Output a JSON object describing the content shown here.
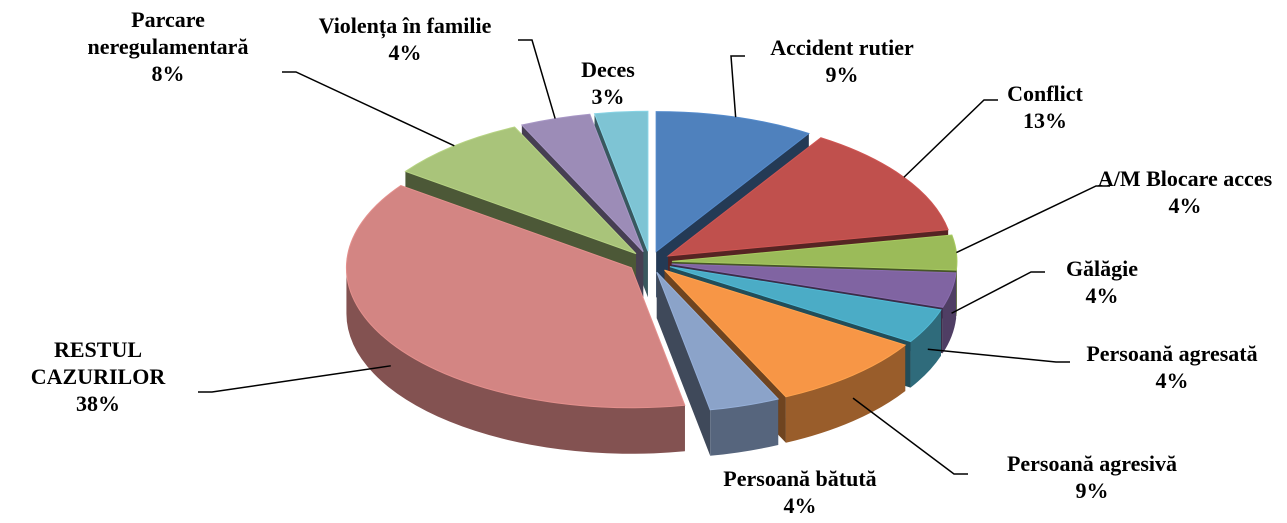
{
  "chart_data": {
    "type": "pie",
    "categories": [
      "Accident rutier",
      "Conflict",
      "A/M Blocare acces",
      "Gălăgie",
      "Persoană agresată",
      "Persoană agresivă",
      "Persoană bătută",
      "RESTUL CAZURILOR",
      "Parcare neregulamentară",
      "Violența în familie",
      "Deces"
    ],
    "values": [
      9,
      13,
      4,
      4,
      4,
      9,
      4,
      38,
      8,
      4,
      3
    ],
    "value_labels": [
      "9%",
      "13%",
      "4%",
      "4%",
      "4%",
      "9%",
      "4%",
      "38%",
      "8%",
      "4%",
      "3%"
    ],
    "colors": [
      "#4F81BD",
      "#C0504D",
      "#9BBB59",
      "#8064A2",
      "#4BACC6",
      "#F79646",
      "#8BA3C9",
      "#D38583",
      "#A9C47A",
      "#9C8CB7",
      "#7EC4D4"
    ]
  }
}
